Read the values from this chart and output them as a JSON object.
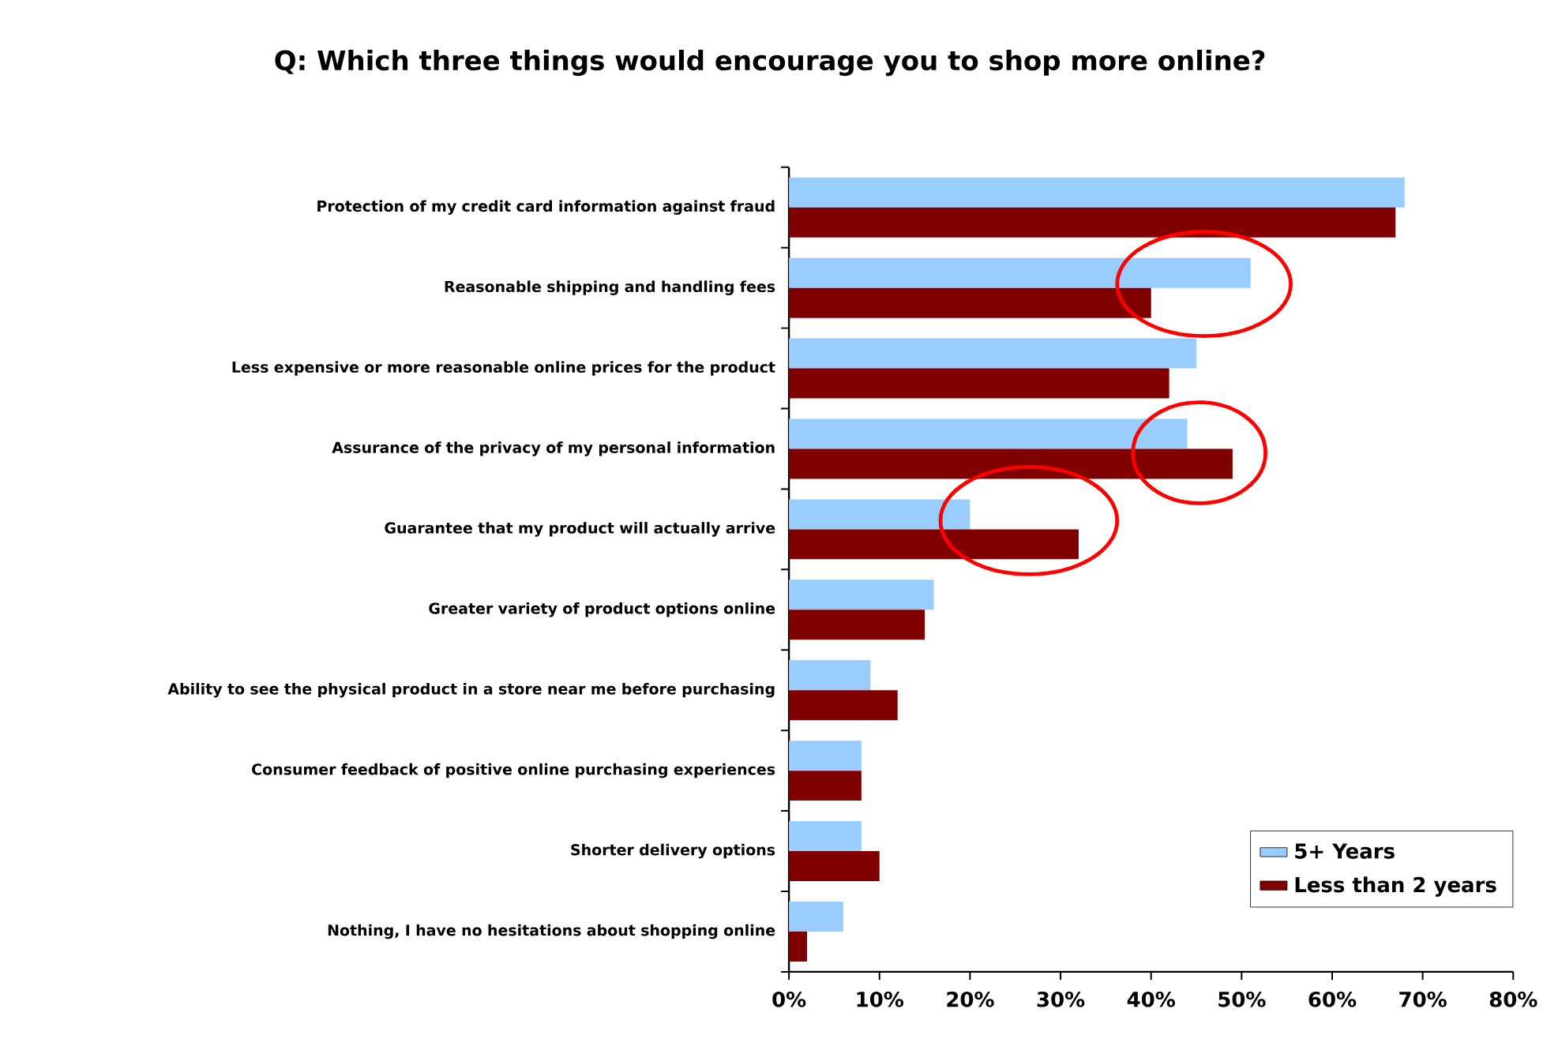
{
  "chart_data": {
    "type": "bar",
    "orientation": "horizontal",
    "title": "Q: Which three things would encourage you to shop more online?",
    "categories": [
      "Protection of my credit card information against fraud",
      "Reasonable shipping and handling fees",
      "Less expensive or more reasonable online prices for the product",
      "Assurance of the privacy of my personal information",
      "Guarantee that my product will actually arrive",
      "Greater variety of product options online",
      "Ability to see the physical product in a store near me before purchasing",
      "Consumer feedback of positive online purchasing experiences",
      "Shorter delivery options",
      "Nothing, I have no hesitations about shopping online"
    ],
    "series": [
      {
        "name": "5+ Years",
        "color": "#99ccff",
        "values": [
          68,
          51,
          45,
          44,
          20,
          16,
          9,
          8,
          8,
          6
        ]
      },
      {
        "name": "Less than 2 years",
        "color": "#800000",
        "values": [
          67,
          40,
          42,
          49,
          32,
          15,
          12,
          8,
          10,
          2
        ]
      }
    ],
    "xlim": [
      0,
      80
    ],
    "xticks": [
      {
        "value": 0,
        "label": "0%"
      },
      {
        "value": 10,
        "label": "10%"
      },
      {
        "value": 20,
        "label": "20%"
      },
      {
        "value": 30,
        "label": "30%"
      },
      {
        "value": 40,
        "label": "40%"
      },
      {
        "value": 50,
        "label": "50%"
      },
      {
        "value": 60,
        "label": "60%"
      },
      {
        "value": 70,
        "label": "70%"
      },
      {
        "value": 80,
        "label": "80%"
      }
    ],
    "legend": "bottom right"
  }
}
